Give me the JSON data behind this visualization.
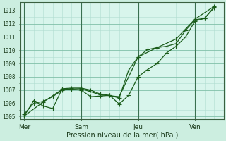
{
  "background_color": "#cceee0",
  "plot_bg_color": "#d8f5ec",
  "grid_color_minor": "#b0ddd0",
  "grid_color_major": "#80c0a8",
  "line_color": "#1a5c1a",
  "xlabel": "Pression niveau de la mer( hPa )",
  "xlabel_fontsize": 7,
  "ylim": [
    1004.8,
    1013.6
  ],
  "yticks": [
    1005,
    1006,
    1007,
    1008,
    1009,
    1010,
    1011,
    1012,
    1013
  ],
  "xtick_labels": [
    "Mer",
    "Sam",
    "Jeu",
    "Ven"
  ],
  "xtick_positions": [
    0,
    3,
    6,
    9
  ],
  "vline_positions": [
    0,
    3,
    6,
    9
  ],
  "series1_x": [
    0,
    0.5,
    1.0,
    1.5,
    2.0,
    2.5,
    3.0,
    3.5,
    4.0,
    4.5,
    5.0,
    5.5,
    6.0,
    6.5,
    7.0,
    7.5,
    8.0,
    8.5,
    9.0,
    9.5,
    10.0
  ],
  "series1_y": [
    1005.2,
    1006.0,
    1006.15,
    1006.5,
    1007.0,
    1007.05,
    1007.0,
    1006.5,
    1006.55,
    1006.6,
    1005.95,
    1006.6,
    1008.0,
    1008.55,
    1009.0,
    1009.8,
    1010.3,
    1011.0,
    1012.2,
    1012.4,
    1013.2
  ],
  "series2_x": [
    0,
    0.5,
    1.0,
    1.5,
    2.0,
    2.5,
    3.0,
    3.5,
    4.0,
    4.5,
    5.0,
    5.5,
    6.0,
    6.5,
    7.0,
    7.5,
    8.0,
    8.5,
    9.0,
    9.5,
    10.0
  ],
  "series2_y": [
    1005.05,
    1006.2,
    1005.8,
    1005.6,
    1007.1,
    1007.15,
    1007.15,
    1007.0,
    1006.7,
    1006.6,
    1006.4,
    1008.5,
    1009.5,
    1010.05,
    1010.2,
    1010.3,
    1010.5,
    1011.5,
    1012.3,
    1012.4,
    1013.25
  ],
  "series3_x": [
    0,
    1.0,
    2.0,
    3.0,
    4.0,
    5.0,
    6.0,
    7.0,
    8.0,
    9.0,
    10.0
  ],
  "series3_y": [
    1005.05,
    1006.1,
    1007.05,
    1007.1,
    1006.65,
    1006.5,
    1009.5,
    1010.2,
    1010.85,
    1012.35,
    1013.3
  ],
  "xlim": [
    -0.2,
    10.5
  ]
}
